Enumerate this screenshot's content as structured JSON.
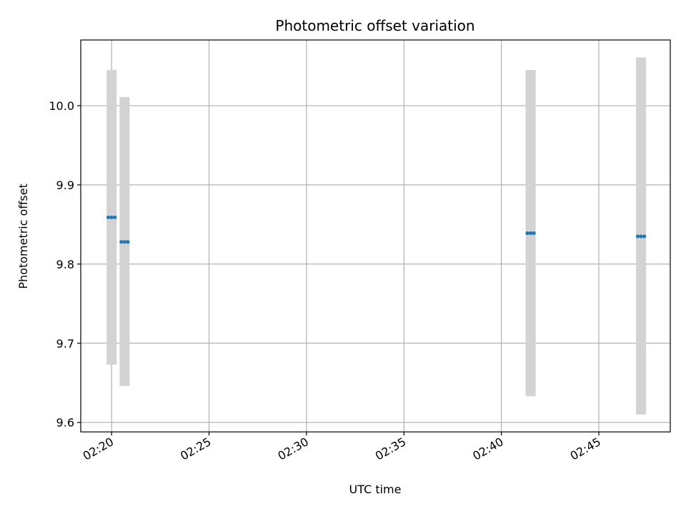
{
  "chart_data": {
    "type": "scatter",
    "title": "Photometric offset variation",
    "xlabel": "UTC time",
    "ylabel": "Photometric offset",
    "x_axis_kind": "time",
    "x_ticks": [
      "02:20",
      "02:25",
      "02:30",
      "02:35",
      "02:40",
      "02:45"
    ],
    "xlim": [
      "02:18:25",
      "02:48:40"
    ],
    "y_ticks": [
      "9.6",
      "9.7",
      "9.8",
      "9.9",
      "10.0"
    ],
    "ylim": [
      9.588,
      10.083
    ],
    "grid": true,
    "series": [
      {
        "marker_color": "#1f77b4",
        "errorbar_color": "#d3d3d3",
        "points": [
          {
            "x": "02:19:50",
            "y": 9.859,
            "y_low": 9.673,
            "y_high": 10.045
          },
          {
            "x": "02:20:00",
            "y": 9.859,
            "y_low": 9.673,
            "y_high": 10.045
          },
          {
            "x": "02:20:10",
            "y": 9.859,
            "y_low": 9.673,
            "y_high": 10.045
          },
          {
            "x": "02:20:30",
            "y": 9.828,
            "y_low": 9.646,
            "y_high": 10.011
          },
          {
            "x": "02:20:40",
            "y": 9.828,
            "y_low": 9.646,
            "y_high": 10.011
          },
          {
            "x": "02:20:50",
            "y": 9.828,
            "y_low": 9.646,
            "y_high": 10.011
          },
          {
            "x": "02:41:20",
            "y": 9.839,
            "y_low": 9.633,
            "y_high": 10.045
          },
          {
            "x": "02:41:30",
            "y": 9.839,
            "y_low": 9.633,
            "y_high": 10.045
          },
          {
            "x": "02:41:40",
            "y": 9.839,
            "y_low": 9.633,
            "y_high": 10.045
          },
          {
            "x": "02:47:00",
            "y": 9.835,
            "y_low": 9.61,
            "y_high": 10.061
          },
          {
            "x": "02:47:10",
            "y": 9.835,
            "y_low": 9.61,
            "y_high": 10.061
          },
          {
            "x": "02:47:20",
            "y": 9.835,
            "y_low": 9.61,
            "y_high": 10.061
          }
        ]
      }
    ]
  }
}
